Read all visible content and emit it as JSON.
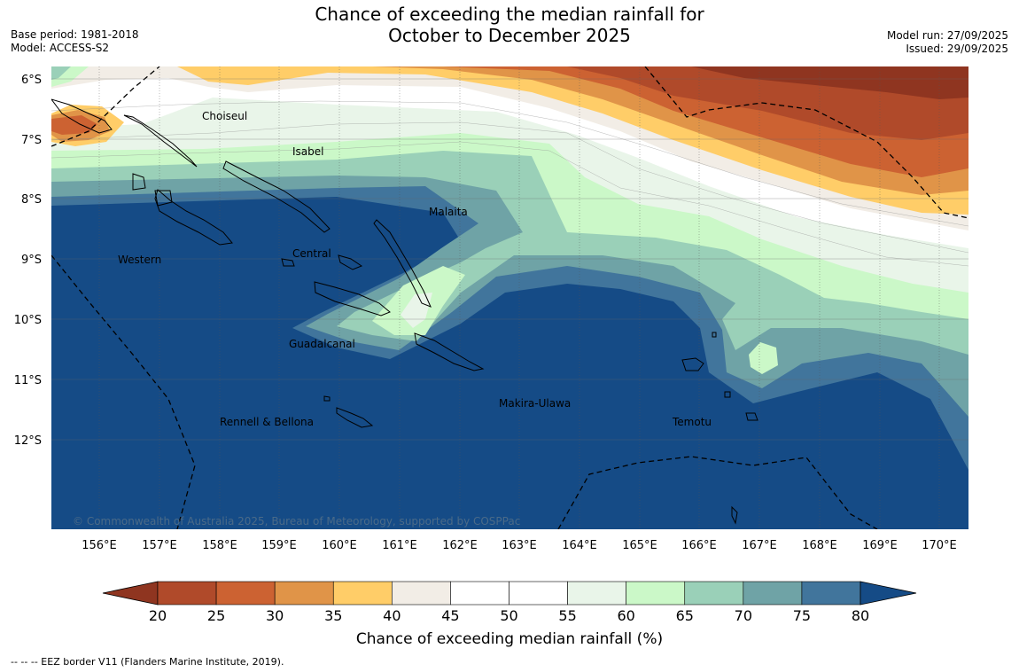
{
  "title": {
    "line1": "Chance of exceeding the median rainfall for",
    "line2": "October to December 2025"
  },
  "meta": {
    "base_period": "Base period: 1981-2018",
    "model": "Model: ACCESS-S2",
    "model_run": "Model run: 27/09/2025",
    "issued": "Issued: 29/09/2025"
  },
  "map": {
    "lat_ticks": [
      "6°S",
      "7°S",
      "8°S",
      "9°S",
      "10°S",
      "11°S",
      "12°S"
    ],
    "lon_ticks": [
      "156°E",
      "157°E",
      "158°E",
      "159°E",
      "160°E",
      "161°E",
      "162°E",
      "163°E",
      "164°E",
      "165°E",
      "166°E",
      "167°E",
      "168°E",
      "169°E",
      "170°E"
    ],
    "regions": {
      "choiseul": "Choiseul",
      "isabel": "Isabel",
      "malaita": "Malaita",
      "western": "Western",
      "central": "Central",
      "guadalcanal": "Guadalcanal",
      "makira": "Makira-Ulawa",
      "rennell": "Rennell & Bellona",
      "temotu": "Temotu"
    },
    "copyright": "© Commonwealth of Australia 2025, Bureau of Meteorology, supported by COSPPac"
  },
  "legend": {
    "ticks": [
      "20",
      "25",
      "30",
      "35",
      "40",
      "45",
      "50",
      "55",
      "60",
      "65",
      "70",
      "75",
      "80"
    ],
    "colors": [
      "#8f3520",
      "#b04a2a",
      "#cc6232",
      "#e09448",
      "#ffcd68",
      "#f2ede6",
      "#ffffff",
      "#ffffff",
      "#e9f5e9",
      "#cbf8c8",
      "#9ad0b8",
      "#6fa3a6",
      "#41759c",
      "#154b86"
    ],
    "label": "Chance of exceeding median rainfall (%)"
  },
  "footer": "--  --  -- EEZ border V11 (Flanders Marine Institute, 2019)."
}
